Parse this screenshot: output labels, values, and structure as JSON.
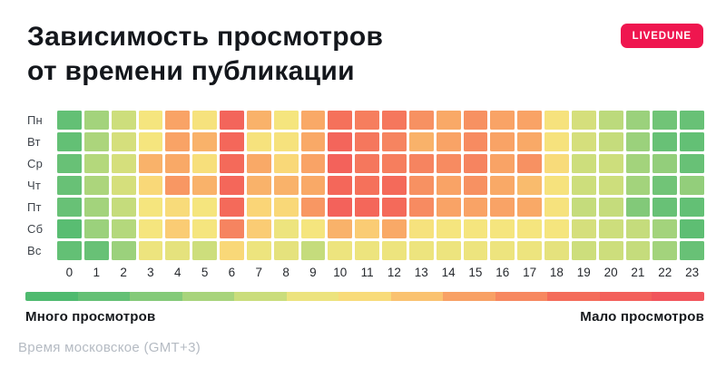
{
  "header": {
    "title_line1": "Зависимость просмотров",
    "title_line2": "от времени публикации",
    "brand_label": "LIVEDUNE",
    "brand_color": "#ef164f"
  },
  "chart_data": {
    "type": "heatmap",
    "title": "Зависимость просмотров от времени публикации",
    "x_labels": [
      "0",
      "1",
      "2",
      "3",
      "4",
      "5",
      "6",
      "7",
      "8",
      "9",
      "10",
      "11",
      "12",
      "13",
      "14",
      "15",
      "16",
      "17",
      "18",
      "19",
      "20",
      "21",
      "22",
      "23"
    ],
    "y_labels": [
      "Пн",
      "Вт",
      "Ср",
      "Чт",
      "Пт",
      "Сб",
      "Вс"
    ],
    "value_scale": "0 = много просмотров (зелёный), 100 = мало просмотров (красный)",
    "values": [
      [
        8,
        24,
        34,
        44,
        66,
        46,
        88,
        62,
        44,
        64,
        82,
        78,
        80,
        72,
        64,
        72,
        66,
        66,
        46,
        36,
        30,
        22,
        12,
        10
      ],
      [
        8,
        26,
        36,
        44,
        66,
        62,
        86,
        46,
        46,
        64,
        88,
        80,
        76,
        62,
        66,
        74,
        66,
        64,
        46,
        36,
        32,
        22,
        10,
        8
      ],
      [
        10,
        28,
        36,
        62,
        64,
        48,
        84,
        64,
        52,
        66,
        90,
        80,
        78,
        76,
        74,
        76,
        66,
        72,
        50,
        34,
        34,
        24,
        20,
        10
      ],
      [
        10,
        26,
        36,
        52,
        70,
        62,
        86,
        62,
        62,
        64,
        86,
        82,
        84,
        72,
        66,
        72,
        64,
        60,
        46,
        34,
        34,
        24,
        12,
        20
      ],
      [
        10,
        24,
        32,
        44,
        50,
        44,
        84,
        54,
        52,
        70,
        90,
        86,
        84,
        74,
        66,
        66,
        66,
        64,
        46,
        32,
        32,
        16,
        10,
        8
      ],
      [
        4,
        22,
        28,
        44,
        56,
        44,
        76,
        56,
        42,
        44,
        62,
        56,
        64,
        46,
        44,
        44,
        44,
        44,
        44,
        36,
        34,
        32,
        24,
        6
      ],
      [
        8,
        10,
        22,
        42,
        40,
        34,
        52,
        42,
        40,
        32,
        42,
        42,
        42,
        42,
        42,
        42,
        42,
        42,
        40,
        34,
        34,
        32,
        24,
        10
      ]
    ],
    "colormap": [
      [
        0,
        "#4fba6f"
      ],
      [
        10,
        "#68c176"
      ],
      [
        22,
        "#9bd17c"
      ],
      [
        34,
        "#cdde7c"
      ],
      [
        44,
        "#f5e57e"
      ],
      [
        54,
        "#fad577"
      ],
      [
        64,
        "#f9a967"
      ],
      [
        74,
        "#f78b61"
      ],
      [
        84,
        "#f46a5a"
      ],
      [
        100,
        "#f1555c"
      ]
    ],
    "legend": {
      "left_label": "Много просмотров",
      "right_label": "Мало просмотров",
      "segments": 13,
      "position": "bottom"
    }
  },
  "footer": {
    "note": "Время московское (GMT+3)",
    "note_color": "#b5bbc3"
  }
}
